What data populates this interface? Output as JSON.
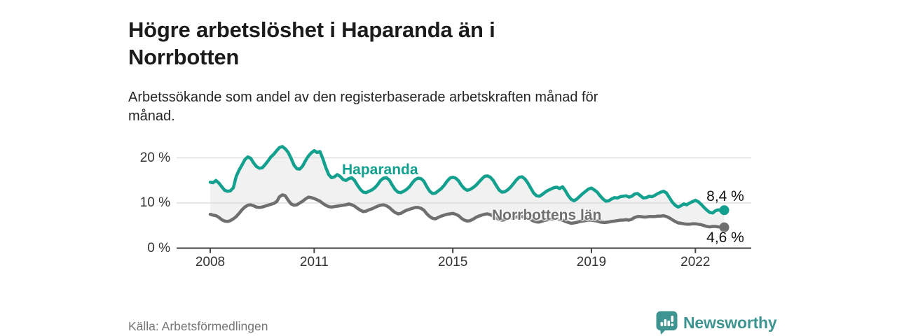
{
  "header": {
    "title_lines": [
      "Högre arbetslöshet i Haparanda än i",
      "Norrbotten"
    ],
    "subtitle_lines": [
      "Arbetssökande som andel av den registerbaserade arbetskraften månad för",
      "månad."
    ]
  },
  "footer": {
    "source": "Källa: Arbetsförmedlingen",
    "brand": "Newsworthy"
  },
  "colors": {
    "haparanda": "#14a08e",
    "norrbotten": "#6f6f6f",
    "band": "#f1f1f1",
    "grid": "#d9d9d9",
    "axis": "#444444",
    "brand_teal": "#3e9490",
    "value_label_text": "#111111"
  },
  "chart_data": {
    "type": "line",
    "unit": "%",
    "x_start": "2008-01",
    "x_end": "2022-11",
    "x_interval": "month",
    "x_ticks": [
      2008,
      2011,
      2015,
      2019,
      2022
    ],
    "y_ticks": [
      0,
      10,
      20
    ],
    "y_tick_labels": [
      "0 %",
      "10 %",
      "20 %"
    ],
    "ylim": [
      0,
      24
    ],
    "grid": true,
    "legend_position": "inline-labels",
    "series": [
      {
        "name": "Haparanda",
        "color": "#14a08e",
        "end_label": "8,4 %",
        "end_value": 8.4,
        "values": [
          14.6,
          14.5,
          15.0,
          14.4,
          13.6,
          12.8,
          12.6,
          12.7,
          13.4,
          15.9,
          17.3,
          18.4,
          19.6,
          20.2,
          19.9,
          18.9,
          18.1,
          17.7,
          17.8,
          18.5,
          19.3,
          20.2,
          20.8,
          21.6,
          22.3,
          22.5,
          22.0,
          21.2,
          19.9,
          18.4,
          17.6,
          17.5,
          18.2,
          19.4,
          20.4,
          21.1,
          21.6,
          21.2,
          21.4,
          19.8,
          17.9,
          16.3,
          15.6,
          15.8,
          16.3,
          15.9,
          15.2,
          15.0,
          15.4,
          15.6,
          15.0,
          13.9,
          13.0,
          12.4,
          12.3,
          12.6,
          12.9,
          13.4,
          14.1,
          15.0,
          15.5,
          15.6,
          15.1,
          14.0,
          13.0,
          12.4,
          12.3,
          12.6,
          13.0,
          13.6,
          14.5,
          15.2,
          15.5,
          15.4,
          14.8,
          13.6,
          12.6,
          12.1,
          12.2,
          12.7,
          13.2,
          13.9,
          14.8,
          15.5,
          15.7,
          15.5,
          14.9,
          13.9,
          13.2,
          12.8,
          13.0,
          13.4,
          13.9,
          14.6,
          15.3,
          15.9,
          16.0,
          15.7,
          15.0,
          13.9,
          12.9,
          12.4,
          12.5,
          12.9,
          13.5,
          14.3,
          15.1,
          15.7,
          15.8,
          15.3,
          14.4,
          13.3,
          12.2,
          11.6,
          11.5,
          11.9,
          12.4,
          12.8,
          13.1,
          13.4,
          13.5,
          13.2,
          13.6,
          12.7,
          11.6,
          10.8,
          10.5,
          10.9,
          11.5,
          12.1,
          12.6,
          13.1,
          13.3,
          12.9,
          12.4,
          11.6,
          10.9,
          10.4,
          10.5,
          10.9,
          11.2,
          11.1,
          11.4,
          11.5,
          11.6,
          11.3,
          11.5,
          12.0,
          12.1,
          11.6,
          11.1,
          11.2,
          11.5,
          11.4,
          11.7,
          12.1,
          12.4,
          12.6,
          12.2,
          11.2,
          10.2,
          9.5,
          9.1,
          9.4,
          9.8,
          9.6,
          10.0,
          10.3,
          10.6,
          10.3,
          9.7,
          9.0,
          8.4,
          7.9,
          7.8,
          8.3,
          8.5,
          8.2,
          8.4
        ]
      },
      {
        "name": "Norrbottens län",
        "color": "#6f6f6f",
        "end_label": "4,6 %",
        "end_value": 4.6,
        "values": [
          7.5,
          7.3,
          7.2,
          6.8,
          6.3,
          6.0,
          5.9,
          6.1,
          6.5,
          7.0,
          7.7,
          8.5,
          9.1,
          9.5,
          9.6,
          9.4,
          9.1,
          9.0,
          9.1,
          9.3,
          9.5,
          9.7,
          9.9,
          10.3,
          11.4,
          11.8,
          11.6,
          10.6,
          9.8,
          9.5,
          9.6,
          10.0,
          10.4,
          10.9,
          11.3,
          11.2,
          11.0,
          10.7,
          10.4,
          9.9,
          9.5,
          9.2,
          9.1,
          9.2,
          9.3,
          9.4,
          9.5,
          9.6,
          9.8,
          9.6,
          9.3,
          8.8,
          8.4,
          8.1,
          8.2,
          8.5,
          8.7,
          9.0,
          9.3,
          9.5,
          9.6,
          9.4,
          9.0,
          8.4,
          7.9,
          7.6,
          7.7,
          8.1,
          8.4,
          8.6,
          8.8,
          9.0,
          9.0,
          8.8,
          8.4,
          7.6,
          7.0,
          6.6,
          6.5,
          6.8,
          7.1,
          7.3,
          7.5,
          7.6,
          7.7,
          7.5,
          7.2,
          6.6,
          6.2,
          6.0,
          6.1,
          6.4,
          6.8,
          7.1,
          7.3,
          7.5,
          7.6,
          7.4,
          7.1,
          6.7,
          6.4,
          6.2,
          6.3,
          6.5,
          6.7,
          6.8,
          6.9,
          7.0,
          7.0,
          6.8,
          6.6,
          6.3,
          6.0,
          5.8,
          5.8,
          6.0,
          6.2,
          6.3,
          6.4,
          6.5,
          6.5,
          6.4,
          6.2,
          5.9,
          5.7,
          5.5,
          5.6,
          5.7,
          5.9,
          6.0,
          6.1,
          6.2,
          6.2,
          6.1,
          6.0,
          5.8,
          5.7,
          5.7,
          5.8,
          5.9,
          6.0,
          6.1,
          6.2,
          6.2,
          6.3,
          6.2,
          6.4,
          6.8,
          7.0,
          7.0,
          6.9,
          6.9,
          7.0,
          7.0,
          7.0,
          7.1,
          7.1,
          7.2,
          7.0,
          6.7,
          6.3,
          5.9,
          5.6,
          5.5,
          5.4,
          5.3,
          5.3,
          5.4,
          5.4,
          5.3,
          5.2,
          5.0,
          4.8,
          4.7,
          4.8,
          4.8,
          4.7,
          4.6,
          4.6
        ]
      }
    ]
  }
}
